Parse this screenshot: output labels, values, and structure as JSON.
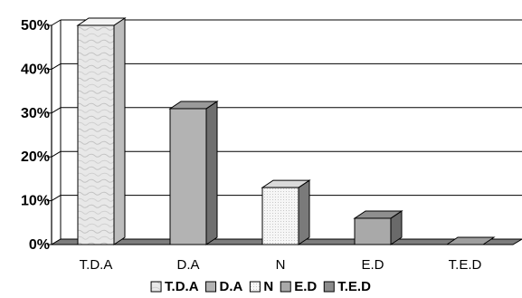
{
  "chart_data": {
    "type": "bar",
    "style": "3d-column",
    "categories": [
      "T.D.A",
      "D.A",
      "N",
      "E.D",
      "T.E.D"
    ],
    "values": [
      0.5,
      0.31,
      0.13,
      0.06,
      0.0
    ],
    "ylim": [
      0,
      0.5
    ],
    "yticks": [
      0,
      0.1,
      0.2,
      0.3,
      0.4,
      0.5
    ],
    "ytick_labels": [
      "0%",
      "10%",
      "20%",
      "30%",
      "40%",
      "50%"
    ],
    "grid": true,
    "legend": {
      "placement": "bottom",
      "entries": [
        "T.D.A",
        "D.A",
        "N",
        "E.D",
        "T.E.D"
      ]
    },
    "colors": {
      "front": [
        "#e6e6e6",
        "#b3b3b3",
        "#f4f4f4",
        "#a9a9a9",
        "#8c8c8c"
      ],
      "top": [
        "#f4f4f4",
        "#9a9a9a",
        "#dadada",
        "#8f8f8f",
        "#9e9e9e"
      ],
      "side": [
        "#bdbdbd",
        "#6f6f6f",
        "#7a7a7a",
        "#6a6a6a",
        "#6a6a6a"
      ],
      "floor": "#7d7d7d",
      "grid": "#000000",
      "stroke": "#000000"
    }
  }
}
